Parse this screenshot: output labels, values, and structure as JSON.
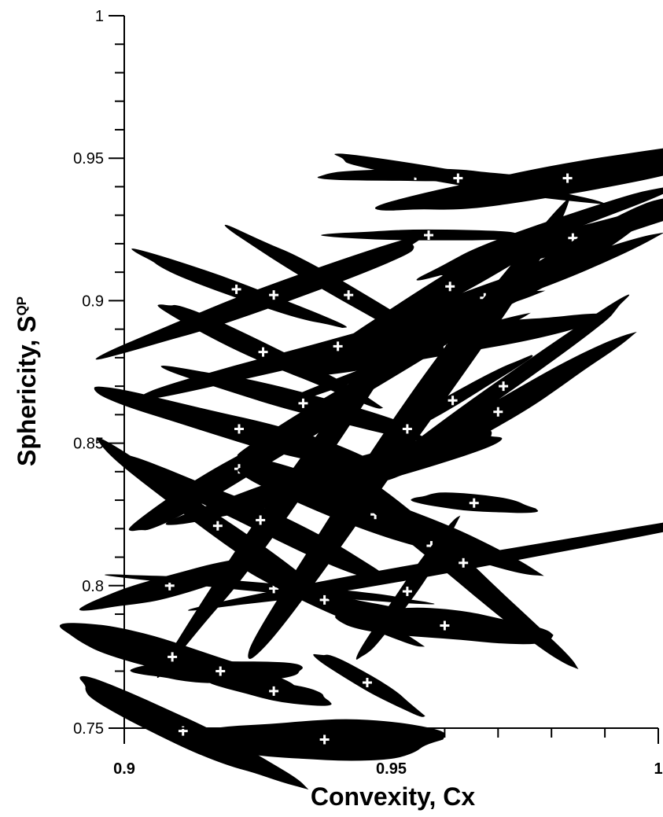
{
  "chart_data": {
    "type": "scatter",
    "xlabel": "Convexity, Cx",
    "ylabel_main": "Sphericity, S",
    "ylabel_sup": "QP",
    "xlim": [
      0.9,
      1.0
    ],
    "ylim": [
      0.75,
      1.0
    ],
    "x_ticks": [
      "0.9",
      "0.95",
      "1"
    ],
    "y_ticks": [
      "0.75",
      "0.8",
      "0.85",
      "0.9",
      "0.95",
      "1"
    ],
    "grid": false,
    "marker": "particle silhouette with cross",
    "points": [
      {
        "x": 0.9545,
        "y": 0.944,
        "w": 4.0,
        "h": 8,
        "rot": 0
      },
      {
        "x": 0.9625,
        "y": 0.943,
        "w": 5.5,
        "h": 9,
        "rot": 10
      },
      {
        "x": 0.983,
        "y": 0.943,
        "w": 7.5,
        "h": 20,
        "rot": -10
      },
      {
        "x": 0.957,
        "y": 0.923,
        "w": 4.0,
        "h": 7,
        "rot": 0
      },
      {
        "x": 0.9785,
        "y": 0.924,
        "w": 5.5,
        "h": 11,
        "rot": -20
      },
      {
        "x": 0.984,
        "y": 0.922,
        "w": 6.0,
        "h": 14,
        "rot": -15
      },
      {
        "x": 0.9775,
        "y": 0.909,
        "w": 6.5,
        "h": 16,
        "rot": -30
      },
      {
        "x": 0.961,
        "y": 0.905,
        "w": 6.0,
        "h": 16,
        "rot": -30
      },
      {
        "x": 0.9675,
        "y": 0.901,
        "w": 7.0,
        "h": 15,
        "rot": -20
      },
      {
        "x": 0.921,
        "y": 0.904,
        "w": 4.5,
        "h": 10,
        "rot": 20
      },
      {
        "x": 0.928,
        "y": 0.902,
        "w": 7.0,
        "h": 14,
        "rot": -20
      },
      {
        "x": 0.942,
        "y": 0.902,
        "w": 5.5,
        "h": 11,
        "rot": 30
      },
      {
        "x": 0.926,
        "y": 0.882,
        "w": 5.0,
        "h": 12,
        "rot": 25
      },
      {
        "x": 0.94,
        "y": 0.884,
        "w": 8.5,
        "h": 12,
        "rot": -15
      },
      {
        "x": 0.953,
        "y": 0.88,
        "w": 5.5,
        "h": 8,
        "rot": -20
      },
      {
        "x": 0.96,
        "y": 0.885,
        "w": 6.5,
        "h": 17,
        "rot": -10
      },
      {
        "x": 0.9445,
        "y": 0.87,
        "w": 6.0,
        "h": 11,
        "rot": -30
      },
      {
        "x": 0.971,
        "y": 0.87,
        "w": 6.5,
        "h": 10,
        "rot": -35
      },
      {
        "x": 0.9335,
        "y": 0.864,
        "w": 5.5,
        "h": 13,
        "rot": 15
      },
      {
        "x": 0.9615,
        "y": 0.865,
        "w": 3.5,
        "h": 8,
        "rot": -30
      },
      {
        "x": 0.97,
        "y": 0.861,
        "w": 6.0,
        "h": 15,
        "rot": -30
      },
      {
        "x": 0.9215,
        "y": 0.855,
        "w": 6.0,
        "h": 16,
        "rot": 15
      },
      {
        "x": 0.953,
        "y": 0.855,
        "w": 11.5,
        "h": 20,
        "rot": -55
      },
      {
        "x": 0.9215,
        "y": 0.841,
        "w": 5.5,
        "h": 15,
        "rot": -30
      },
      {
        "x": 0.9325,
        "y": 0.837,
        "w": 9.5,
        "h": 15,
        "rot": -55
      },
      {
        "x": 0.942,
        "y": 0.839,
        "w": 7.0,
        "h": 19,
        "rot": -15
      },
      {
        "x": 0.9655,
        "y": 0.829,
        "w": 2.5,
        "h": 11,
        "rot": 5
      },
      {
        "x": 0.947,
        "y": 0.825,
        "w": 6.5,
        "h": 22,
        "rot": 20
      },
      {
        "x": 0.9175,
        "y": 0.821,
        "w": 6.0,
        "h": 13,
        "rot": 35
      },
      {
        "x": 0.9255,
        "y": 0.823,
        "w": 6.0,
        "h": 15,
        "rot": 25
      },
      {
        "x": 0.9575,
        "y": 0.814,
        "w": 7.5,
        "h": 16,
        "rot": 40
      },
      {
        "x": 0.9635,
        "y": 0.808,
        "w": 11.5,
        "h": 9,
        "rot": -10
      },
      {
        "x": 0.9085,
        "y": 0.8,
        "w": 3.5,
        "h": 14,
        "rot": -15
      },
      {
        "x": 0.928,
        "y": 0.799,
        "w": 6.5,
        "h": 6,
        "rot": 5
      },
      {
        "x": 0.9375,
        "y": 0.795,
        "w": 4.0,
        "h": 13,
        "rot": 25
      },
      {
        "x": 0.953,
        "y": 0.798,
        "w": 3.5,
        "h": 10,
        "rot": -55
      },
      {
        "x": 0.9495,
        "y": 0.79,
        "w": 2.5,
        "h": 10,
        "rot": 15
      },
      {
        "x": 0.96,
        "y": 0.786,
        "w": 4.5,
        "h": 19,
        "rot": 5
      },
      {
        "x": 0.909,
        "y": 0.775,
        "w": 5.0,
        "h": 19,
        "rot": 15
      },
      {
        "x": 0.918,
        "y": 0.77,
        "w": 3.5,
        "h": 14,
        "rot": 0
      },
      {
        "x": 0.928,
        "y": 0.763,
        "w": 2.5,
        "h": 12,
        "rot": 10
      },
      {
        "x": 0.9455,
        "y": 0.766,
        "w": 2.5,
        "h": 10,
        "rot": 30
      },
      {
        "x": 0.911,
        "y": 0.749,
        "w": 5.0,
        "h": 18,
        "rot": 25
      },
      {
        "x": 0.9375,
        "y": 0.746,
        "w": 5.0,
        "h": 26,
        "rot": 0
      }
    ]
  }
}
